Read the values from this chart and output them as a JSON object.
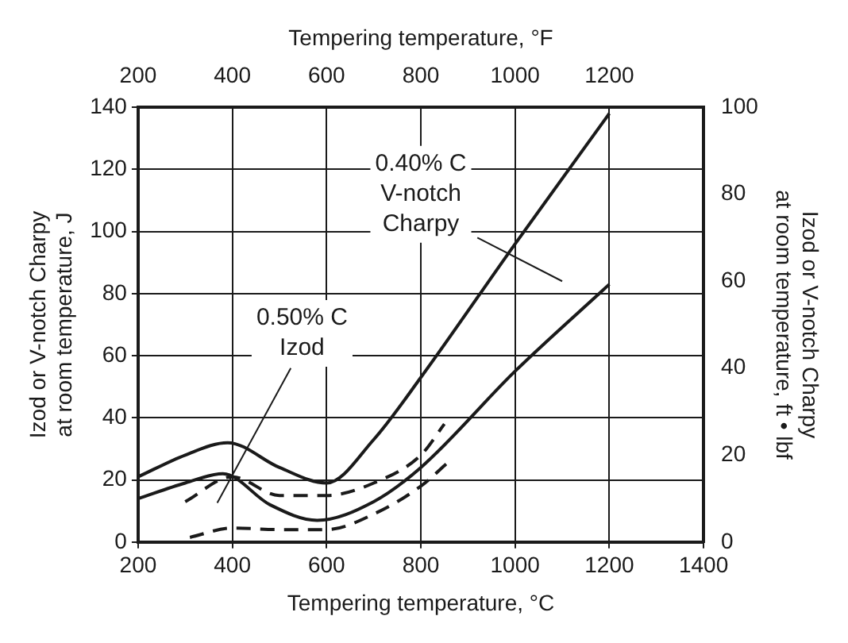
{
  "chart_data": {
    "type": "line",
    "xlabel": "Tempering temperature, °C",
    "x2label": "Tempering temperature, °F",
    "ylabel": "Izod or V-notch Charpy\nat room temperature, J",
    "y2label": "Izod or V-notch Charpy\nat room temperature, ft • lbf",
    "xlim": [
      200,
      1400
    ],
    "xticks": [
      200,
      400,
      600,
      800,
      1000,
      1200,
      1400
    ],
    "x2lim": [
      200,
      1400
    ],
    "x2ticks": [
      200,
      400,
      600,
      800,
      1000,
      1200
    ],
    "ylim": [
      0,
      140
    ],
    "yticks": [
      0,
      20,
      40,
      60,
      80,
      100,
      120,
      140
    ],
    "y2lim": [
      0,
      100
    ],
    "y2ticks": [
      0,
      20,
      40,
      60,
      80,
      100
    ],
    "series": [
      {
        "color": "#1a1a1a",
        "line_style": "solid",
        "x": [
          200,
          300,
          390,
          500,
          600,
          700,
          800,
          1000,
          1200
        ],
        "values": [
          21,
          28,
          32,
          24,
          19,
          33,
          53,
          96,
          138
        ]
      },
      {
        "color": "#1a1a1a",
        "line_style": "solid",
        "x": [
          200,
          300,
          380,
          480,
          580,
          700,
          800,
          1000,
          1200
        ],
        "values": [
          14,
          19,
          22,
          12,
          7,
          13,
          24,
          55,
          83
        ]
      },
      {
        "color": "#1a1a1a",
        "line_style": "dashed",
        "x": [
          300,
          400,
          500,
          600,
          700,
          800,
          850
        ],
        "values": [
          13,
          21,
          15,
          15,
          19,
          28,
          38
        ]
      },
      {
        "color": "#1a1a1a",
        "line_style": "dashed",
        "x": [
          310,
          400,
          500,
          600,
          700,
          800,
          860
        ],
        "values": [
          1.5,
          4.5,
          4,
          4,
          9,
          18,
          26
        ]
      }
    ],
    "annotations": [
      "0.40% C\nV-notch\nCharpy",
      "0.50% C\nIzod"
    ],
    "grid": true,
    "legend": false,
    "marker": "none"
  }
}
